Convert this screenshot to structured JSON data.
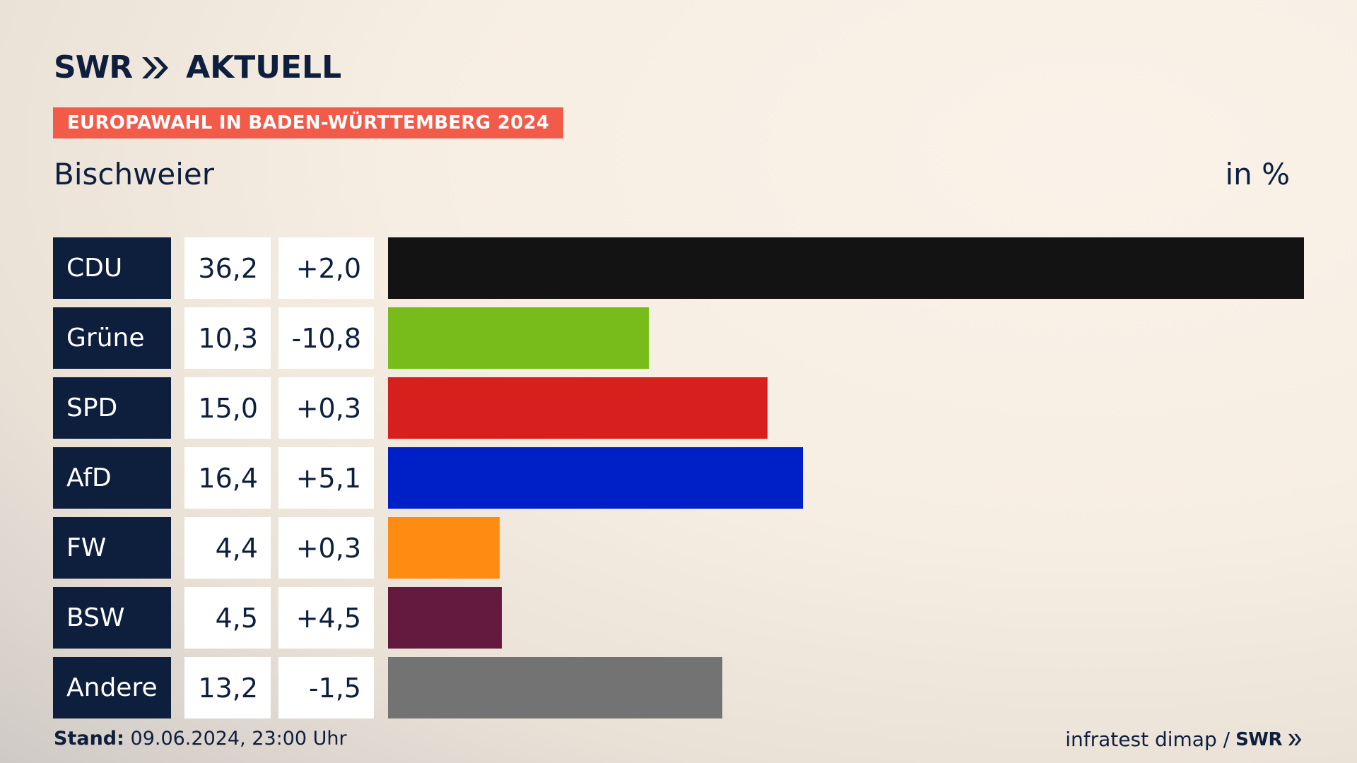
{
  "header": {
    "logo_brand": "SWR",
    "logo_app": "AKTUELL",
    "badge": "EUROPAWAHL IN BADEN-WÜRTTEMBERG 2024",
    "location": "Bischweier",
    "unit": "in %"
  },
  "chart_data": {
    "type": "bar",
    "orientation": "horizontal",
    "title": "Bischweier",
    "unit": "in %",
    "categories": [
      "CDU",
      "Grüne",
      "SPD",
      "AfD",
      "FW",
      "BSW",
      "Andere"
    ],
    "values": [
      36.2,
      10.3,
      15.0,
      16.4,
      4.4,
      4.5,
      13.2
    ],
    "value_labels": [
      "36,2",
      "10,3",
      "15,0",
      "16,4",
      "4,4",
      "4,5",
      "13,2"
    ],
    "changes": [
      2.0,
      -10.8,
      0.3,
      5.1,
      0.3,
      4.5,
      -1.5
    ],
    "change_labels": [
      "+2,0",
      "-10,8",
      "+0,3",
      "+5,1",
      "+0,3",
      "+4,5",
      "-1,5"
    ],
    "colors": [
      "#131313",
      "#78bc1b",
      "#d71f1d",
      "#0020c7",
      "#ff8c12",
      "#641a3e",
      "#737373"
    ],
    "xlim": [
      0,
      36.2
    ]
  },
  "footer": {
    "stand_label": "Stand:",
    "stand_value": "09.06.2024, 23:00 Uhr",
    "source": "infratest dimap /",
    "source_logo": "SWR"
  }
}
